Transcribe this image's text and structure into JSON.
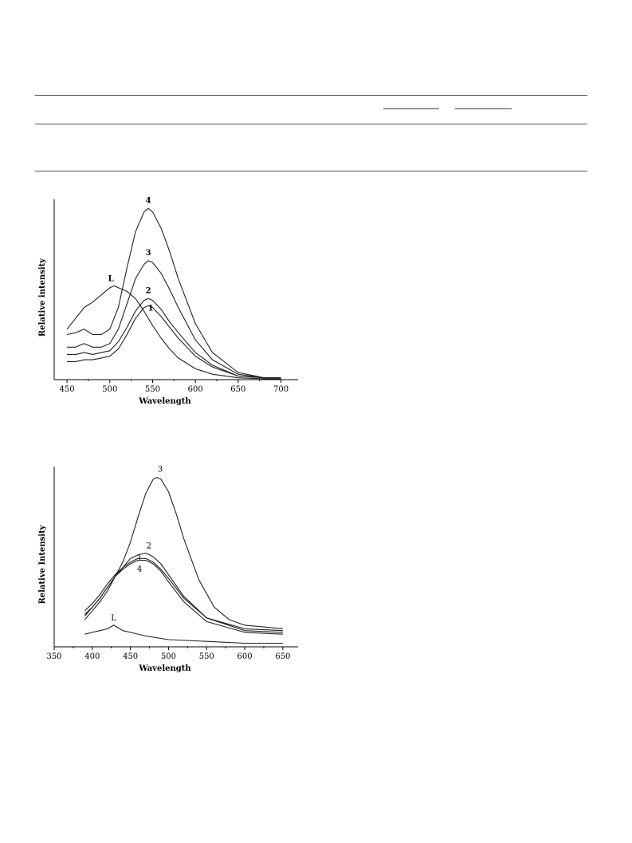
{
  "table_fragment": {
    "visible_text": []
  },
  "chart_data": [
    {
      "type": "line",
      "title": "",
      "xlabel": "Wavelength",
      "ylabel": "Relative intensity",
      "xlim": [
        435,
        720
      ],
      "ylim": [
        0,
        1
      ],
      "xticks": [
        450,
        500,
        550,
        600,
        650,
        700
      ],
      "yticks_shown": false,
      "grid": false,
      "legend": "none",
      "series": [
        {
          "name": "L",
          "x": [
            450,
            460,
            470,
            480,
            490,
            500,
            505,
            510,
            520,
            530,
            540,
            550,
            560,
            570,
            580,
            600,
            620,
            650,
            680,
            700
          ],
          "y": [
            0.28,
            0.34,
            0.4,
            0.43,
            0.47,
            0.51,
            0.52,
            0.51,
            0.49,
            0.45,
            0.38,
            0.3,
            0.23,
            0.17,
            0.12,
            0.06,
            0.03,
            0.01,
            0.005,
            0.005
          ]
        },
        {
          "name": "1",
          "x": [
            450,
            460,
            470,
            480,
            490,
            500,
            510,
            520,
            530,
            540,
            545,
            550,
            560,
            570,
            580,
            600,
            620,
            650,
            680,
            700
          ],
          "y": [
            0.1,
            0.1,
            0.11,
            0.11,
            0.12,
            0.13,
            0.17,
            0.25,
            0.34,
            0.4,
            0.41,
            0.4,
            0.35,
            0.29,
            0.23,
            0.13,
            0.07,
            0.02,
            0.01,
            0.01
          ]
        },
        {
          "name": "2",
          "x": [
            450,
            460,
            470,
            480,
            490,
            500,
            510,
            520,
            530,
            540,
            545,
            550,
            560,
            570,
            580,
            600,
            620,
            650,
            680,
            700
          ],
          "y": [
            0.14,
            0.14,
            0.15,
            0.14,
            0.15,
            0.16,
            0.21,
            0.29,
            0.38,
            0.44,
            0.45,
            0.44,
            0.39,
            0.32,
            0.26,
            0.15,
            0.08,
            0.02,
            0.01,
            0.01
          ]
        },
        {
          "name": "3",
          "x": [
            450,
            460,
            470,
            480,
            490,
            500,
            510,
            520,
            530,
            540,
            545,
            550,
            560,
            570,
            580,
            600,
            620,
            650,
            680,
            700
          ],
          "y": [
            0.18,
            0.18,
            0.2,
            0.18,
            0.18,
            0.2,
            0.28,
            0.42,
            0.56,
            0.64,
            0.66,
            0.65,
            0.59,
            0.5,
            0.4,
            0.22,
            0.11,
            0.03,
            0.01,
            0.01
          ]
        },
        {
          "name": "4",
          "x": [
            450,
            460,
            470,
            480,
            490,
            500,
            510,
            520,
            530,
            540,
            545,
            550,
            560,
            570,
            580,
            600,
            620,
            650,
            680,
            700
          ],
          "y": [
            0.25,
            0.26,
            0.28,
            0.25,
            0.25,
            0.28,
            0.4,
            0.62,
            0.82,
            0.93,
            0.95,
            0.93,
            0.84,
            0.71,
            0.56,
            0.31,
            0.15,
            0.04,
            0.01,
            0.01
          ]
        }
      ]
    },
    {
      "type": "line",
      "title": "",
      "xlabel": "Wavelength",
      "ylabel": "Relative Intensity",
      "xlim": [
        350,
        670
      ],
      "ylim": [
        0,
        1
      ],
      "xticks": [
        350,
        400,
        450,
        500,
        550,
        600,
        650
      ],
      "yticks_shown": false,
      "grid": false,
      "legend": "none",
      "series": [
        {
          "name": "L",
          "x": [
            390,
            400,
            410,
            420,
            428,
            432,
            440,
            450,
            470,
            500,
            550,
            600,
            650
          ],
          "y": [
            0.07,
            0.08,
            0.09,
            0.1,
            0.12,
            0.11,
            0.09,
            0.08,
            0.06,
            0.04,
            0.03,
            0.02,
            0.02
          ]
        },
        {
          "name": "1",
          "x": [
            390,
            400,
            410,
            420,
            430,
            440,
            450,
            460,
            470,
            480,
            490,
            500,
            520,
            550,
            600,
            650
          ],
          "y": [
            0.2,
            0.24,
            0.29,
            0.35,
            0.4,
            0.44,
            0.47,
            0.49,
            0.49,
            0.47,
            0.43,
            0.38,
            0.27,
            0.16,
            0.1,
            0.09
          ]
        },
        {
          "name": "2",
          "x": [
            390,
            400,
            410,
            420,
            430,
            440,
            450,
            460,
            470,
            480,
            490,
            500,
            520,
            550,
            600,
            650
          ],
          "y": [
            0.18,
            0.22,
            0.27,
            0.33,
            0.39,
            0.44,
            0.49,
            0.51,
            0.52,
            0.5,
            0.46,
            0.4,
            0.28,
            0.16,
            0.09,
            0.08
          ]
        },
        {
          "name": "3",
          "x": [
            390,
            400,
            410,
            420,
            430,
            440,
            450,
            460,
            470,
            480,
            485,
            490,
            500,
            510,
            520,
            540,
            560,
            580,
            600,
            625,
            650
          ],
          "y": [
            0.15,
            0.2,
            0.25,
            0.31,
            0.39,
            0.47,
            0.58,
            0.72,
            0.85,
            0.93,
            0.94,
            0.93,
            0.86,
            0.74,
            0.6,
            0.37,
            0.22,
            0.15,
            0.12,
            0.11,
            0.1
          ]
        },
        {
          "name": "4",
          "x": [
            390,
            400,
            410,
            420,
            430,
            440,
            450,
            460,
            470,
            480,
            490,
            500,
            520,
            550,
            600,
            650
          ],
          "y": [
            0.17,
            0.22,
            0.27,
            0.33,
            0.39,
            0.43,
            0.46,
            0.48,
            0.48,
            0.46,
            0.42,
            0.36,
            0.25,
            0.14,
            0.08,
            0.07
          ]
        }
      ]
    }
  ]
}
